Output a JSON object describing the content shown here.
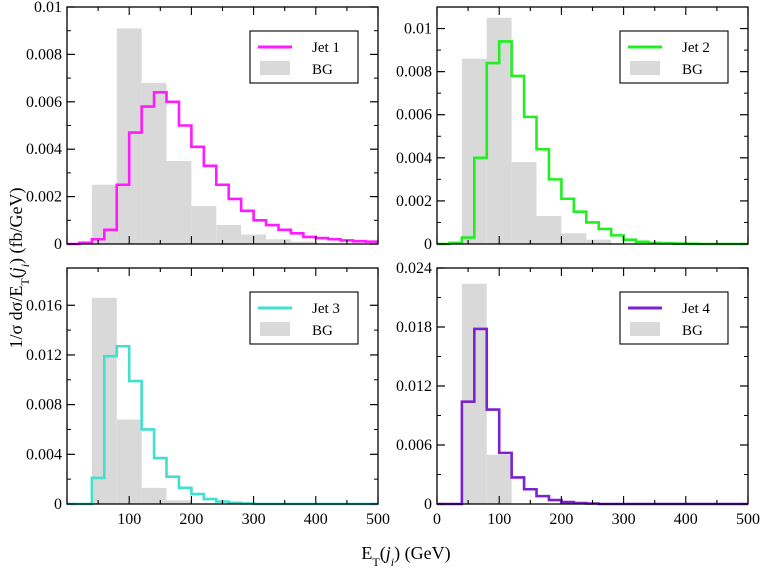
{
  "figure": {
    "ylabel": "1/σ dσ/E_T(j_i) (fb/GeV)",
    "xlabel": "E_T(j_i) (GeV)"
  },
  "colors": {
    "background_hist": "#d9d9d9",
    "jet1": "#ff1aff",
    "jet2": "#22ee22",
    "jet3": "#40e0d0",
    "jet4": "#7b22cc"
  },
  "chart_data": [
    {
      "type": "area",
      "panel": "top-left",
      "bin_edges": [
        0,
        20,
        40,
        60,
        80,
        100,
        120,
        140,
        160,
        180,
        200,
        220,
        240,
        260,
        280,
        300,
        320,
        340,
        360,
        380,
        400,
        420,
        440,
        460,
        480,
        500
      ],
      "xlim": [
        0,
        500
      ],
      "ylim": [
        0,
        0.01
      ],
      "xticks": [],
      "yticks": [
        0,
        0.002,
        0.004,
        0.006,
        0.008,
        0.01
      ],
      "ytick_labels": [
        "0",
        "0.002",
        "0.004",
        "0.006",
        "0.008",
        "0.01"
      ],
      "legend_position": "top-right",
      "series": [
        {
          "name": "Jet 1",
          "style": "step",
          "values": [
            0,
            5e-05,
            0.0002,
            0.0006,
            0.0025,
            0.0047,
            0.0058,
            0.0064,
            0.006,
            0.005,
            0.0041,
            0.0033,
            0.0025,
            0.0019,
            0.0014,
            0.001,
            0.0008,
            0.0006,
            0.00045,
            0.0003,
            0.00025,
            0.0002,
            0.00015,
            0.00012,
            0.0001
          ]
        },
        {
          "name": "BG",
          "style": "bar",
          "bins": [
            [
              40,
              80,
              0.0025
            ],
            [
              80,
              120,
              0.0091
            ],
            [
              120,
              160,
              0.0068
            ],
            [
              160,
              200,
              0.0035
            ],
            [
              200,
              240,
              0.0016
            ],
            [
              240,
              280,
              0.0008
            ],
            [
              280,
              320,
              0.0004
            ],
            [
              320,
              360,
              0.0002
            ],
            [
              360,
              400,
              0.0001
            ]
          ]
        }
      ]
    },
    {
      "type": "area",
      "panel": "top-right",
      "bin_edges": [
        0,
        20,
        40,
        60,
        80,
        100,
        120,
        140,
        160,
        180,
        200,
        220,
        240,
        260,
        280,
        300,
        320,
        340,
        360,
        380,
        400,
        420,
        440,
        460,
        480,
        500
      ],
      "xlim": [
        0,
        500
      ],
      "ylim": [
        0,
        0.011
      ],
      "xticks": [],
      "yticks": [
        0,
        0.002,
        0.004,
        0.006,
        0.008,
        0.01
      ],
      "ytick_labels": [
        "0",
        "0.002",
        "0.004",
        "0.006",
        "0.008",
        "0.01"
      ],
      "legend_position": "top-right",
      "series": [
        {
          "name": "Jet 2",
          "style": "step",
          "values": [
            0,
            5e-05,
            0.0003,
            0.004,
            0.0084,
            0.0094,
            0.0078,
            0.0059,
            0.0044,
            0.003,
            0.0021,
            0.0015,
            0.001,
            0.0007,
            0.0004,
            0.0002,
            0.0001,
            5e-05,
            3e-05,
            2e-05,
            1e-05,
            0,
            0,
            0,
            0
          ]
        },
        {
          "name": "BG",
          "style": "bar",
          "bins": [
            [
              40,
              80,
              0.0086
            ],
            [
              80,
              120,
              0.0105
            ],
            [
              120,
              160,
              0.0038
            ],
            [
              160,
              200,
              0.0013
            ],
            [
              200,
              240,
              0.0005
            ],
            [
              240,
              280,
              0.0002
            ]
          ]
        }
      ]
    },
    {
      "type": "area",
      "panel": "bottom-left",
      "bin_edges": [
        0,
        20,
        40,
        60,
        80,
        100,
        120,
        140,
        160,
        180,
        200,
        220,
        240,
        260,
        280,
        300,
        320,
        340,
        360,
        380,
        400,
        420,
        440,
        460,
        480,
        500
      ],
      "xlim": [
        0,
        500
      ],
      "ylim": [
        0,
        0.019
      ],
      "xticks": [
        100,
        200,
        300,
        400,
        500
      ],
      "yticks": [
        0,
        0.004,
        0.008,
        0.012,
        0.016
      ],
      "ytick_labels": [
        "0",
        "0.004",
        "0.008",
        "0.012",
        "0.016"
      ],
      "legend_position": "top-right",
      "series": [
        {
          "name": "Jet 3",
          "style": "step",
          "values": [
            0,
            0,
            0.0021,
            0.0119,
            0.0127,
            0.0099,
            0.006,
            0.0037,
            0.0022,
            0.0013,
            0.0008,
            0.0004,
            0.0002,
            0.0001,
            5e-05,
            0,
            0,
            0,
            0,
            0,
            0,
            0,
            0,
            0,
            0
          ]
        },
        {
          "name": "BG",
          "style": "bar",
          "bins": [
            [
              40,
              80,
              0.0166
            ],
            [
              80,
              120,
              0.0068
            ],
            [
              120,
              160,
              0.0013
            ],
            [
              160,
              200,
              0.0003
            ]
          ]
        }
      ]
    },
    {
      "type": "area",
      "panel": "bottom-right",
      "bin_edges": [
        0,
        20,
        40,
        60,
        80,
        100,
        120,
        140,
        160,
        180,
        200,
        220,
        240,
        260,
        280,
        300,
        320,
        340,
        360,
        380,
        400,
        420,
        440,
        460,
        480,
        500
      ],
      "xlim": [
        0,
        500
      ],
      "ylim": [
        0,
        0.024
      ],
      "xticks": [
        0,
        100,
        200,
        300,
        400,
        500
      ],
      "yticks": [
        0,
        0.006,
        0.012,
        0.018,
        0.024
      ],
      "ytick_labels": [
        "0",
        "0.006",
        "0.012",
        "0.018",
        "0.024"
      ],
      "legend_position": "top-right",
      "series": [
        {
          "name": "Jet 4",
          "style": "step",
          "values": [
            0,
            0,
            0.0104,
            0.0178,
            0.0096,
            0.0052,
            0.0027,
            0.0015,
            0.0008,
            0.0004,
            0.0002,
            0.0001,
            5e-05,
            0,
            0,
            0,
            0,
            0,
            0,
            0,
            0,
            0,
            0,
            0,
            0
          ]
        },
        {
          "name": "BG",
          "style": "bar",
          "bins": [
            [
              40,
              80,
              0.0224
            ],
            [
              80,
              120,
              0.005
            ]
          ]
        }
      ]
    }
  ]
}
